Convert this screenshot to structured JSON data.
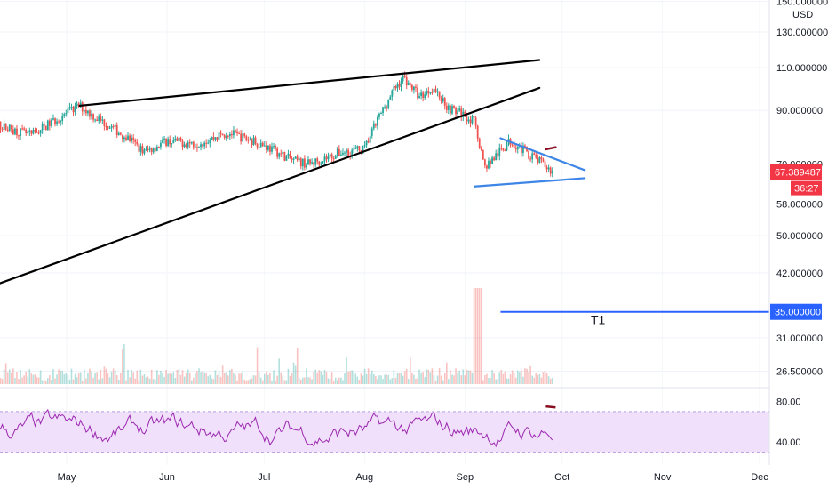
{
  "chart_data": {
    "type": "candlestick",
    "currency": "USD",
    "y_axis": {
      "scale": "log",
      "ylim": [
        24.5,
        152
      ],
      "ticks": [
        "150.000000",
        "130.000000",
        "110.000000",
        "90.000000",
        "70.000000",
        "58.000000",
        "50.000000",
        "42.000000",
        "31.000000",
        "26.500000"
      ],
      "tick_values": [
        150,
        130,
        110,
        90,
        70,
        58,
        50,
        42,
        31,
        26.5
      ]
    },
    "x_axis": {
      "labels": [
        "May",
        "Jun",
        "Jul",
        "Aug",
        "Sep",
        "Oct",
        "Nov",
        "Dec"
      ],
      "range": [
        "2024-04-01",
        "2024-12-05"
      ]
    },
    "last_price": {
      "label": "67.389487",
      "value": 67.389487,
      "countdown": "36:27",
      "color": "#f23645"
    },
    "target": {
      "name": "T1",
      "value": 35,
      "label": "35.000000",
      "color": "#2962ff",
      "from": "2024-09-12",
      "to": "2024-12-05"
    },
    "price_path": [
      [
        "2024-04-01",
        76
      ],
      [
        "2024-04-10",
        84
      ],
      [
        "2024-04-20",
        80
      ],
      [
        "2024-04-30",
        88
      ],
      [
        "2024-05-05",
        92
      ],
      [
        "2024-05-10",
        87
      ],
      [
        "2024-05-15",
        83
      ],
      [
        "2024-05-20",
        79
      ],
      [
        "2024-05-25",
        74
      ],
      [
        "2024-06-01",
        78
      ],
      [
        "2024-06-10",
        77
      ],
      [
        "2024-06-20",
        81
      ],
      [
        "2024-06-30",
        77
      ],
      [
        "2024-07-05",
        74
      ],
      [
        "2024-07-10",
        71
      ],
      [
        "2024-07-15",
        70
      ],
      [
        "2024-07-20",
        72
      ],
      [
        "2024-07-25",
        74
      ],
      [
        "2024-08-01",
        75
      ],
      [
        "2024-08-05",
        86
      ],
      [
        "2024-08-10",
        99
      ],
      [
        "2024-08-13",
        105
      ],
      [
        "2024-08-18",
        96
      ],
      [
        "2024-08-22",
        100
      ],
      [
        "2024-08-27",
        91
      ],
      [
        "2024-09-01",
        88
      ],
      [
        "2024-09-04",
        85
      ],
      [
        "2024-09-07",
        69
      ],
      [
        "2024-09-10",
        72
      ],
      [
        "2024-09-15",
        78
      ],
      [
        "2024-09-20",
        74
      ],
      [
        "2024-09-25",
        70
      ],
      [
        "2024-09-28",
        67.4
      ]
    ],
    "trendlines": [
      {
        "name": "upper-resistance",
        "color": "#000000",
        "points": [
          [
            "2024-05-05",
            92
          ],
          [
            "2024-09-24",
            114
          ]
        ]
      },
      {
        "name": "lower-support",
        "color": "#000000",
        "points": [
          [
            "2024-04-01",
            38
          ],
          [
            "2024-09-24",
            100
          ]
        ]
      },
      {
        "name": "triangle-top",
        "color": "#3d85e6",
        "points": [
          [
            "2024-09-12",
            79
          ],
          [
            "2024-10-08",
            68
          ]
        ]
      },
      {
        "name": "triangle-bottom",
        "color": "#3d85e6",
        "points": [
          [
            "2024-09-04",
            63
          ],
          [
            "2024-10-08",
            65.5
          ]
        ]
      },
      {
        "name": "marker",
        "color": "#880e1f",
        "points": [
          [
            "2024-09-26",
            75
          ],
          [
            "2024-09-29",
            75.7
          ]
        ]
      }
    ],
    "rsi": {
      "ticks": [
        "80.00",
        "40.00"
      ],
      "tick_values": [
        80,
        40
      ],
      "band": [
        30,
        70
      ],
      "range": [
        20,
        90
      ],
      "color": "#9c27b0",
      "band_color": "#f0e0fb"
    },
    "colors": {
      "up": "#26a69a",
      "down": "#ef5350",
      "rsi": "#9c27b0"
    }
  }
}
